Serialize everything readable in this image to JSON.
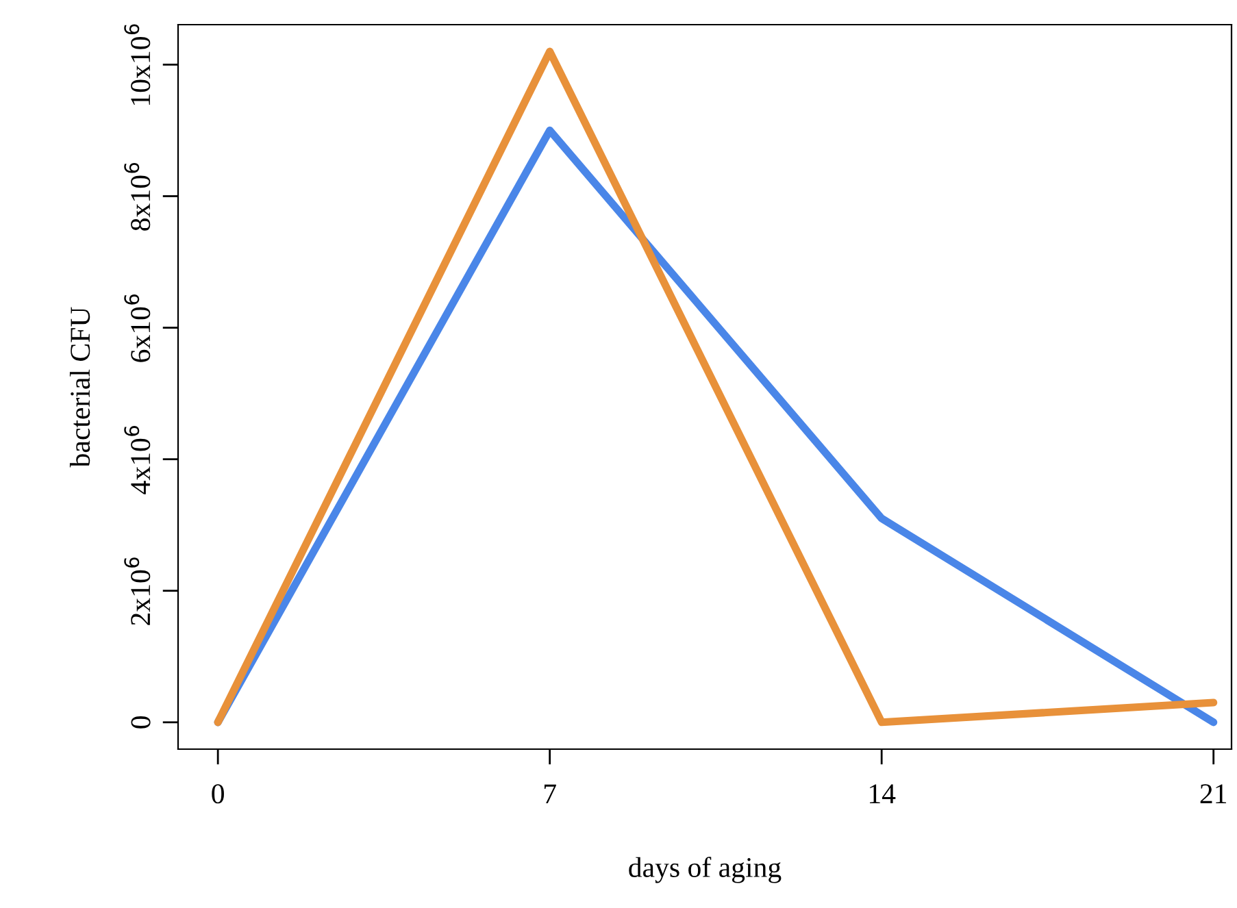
{
  "chart_data": {
    "type": "line",
    "xlabel": "days of aging",
    "ylabel": "bacterial CFU",
    "x": [
      0,
      7,
      14,
      21
    ],
    "series": [
      {
        "color": "#4a86e8",
        "values": [
          0,
          9000000,
          3100000,
          0
        ]
      },
      {
        "color": "#e8913a",
        "values": [
          0,
          10200000,
          0,
          300000
        ]
      }
    ],
    "xlim": [
      -0.84,
      21.38
    ],
    "ylim": [
      -408000,
      10608000
    ],
    "xticks": [
      0,
      7,
      14,
      21
    ],
    "yticks": [
      0,
      {
        "value": 2000000,
        "label": "2x10$^{6}$"
      },
      {
        "value": 4000000,
        "label": "4x10$^{6}$"
      },
      {
        "value": 6000000,
        "label": "6x10$^{6}$"
      },
      {
        "value": 8000000,
        "label": "8x10$^{6}$"
      },
      {
        "value": 10000000,
        "label": "10x10$^{6}$"
      }
    ],
    "grid": false,
    "legend": false,
    "marker": "none",
    "line_style": "solid"
  }
}
